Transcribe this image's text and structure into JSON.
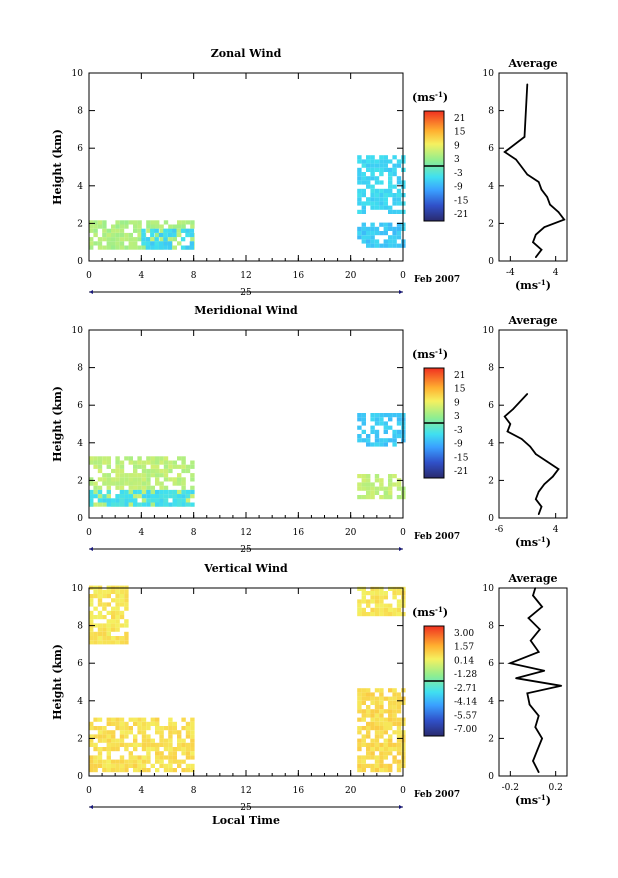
{
  "date_label": "Feb 2007",
  "day_label": "25",
  "x_axis_label": "Local Time",
  "y_axis_label": "Height (km)",
  "unit_label": "(ms",
  "unit_exp": "-1",
  "average_title": "Average",
  "chart_data": [
    {
      "type": "heatmap",
      "title": "Zonal Wind",
      "xlabel": "",
      "ylabel": "Height (km)",
      "xlim": [
        0,
        24
      ],
      "ylim": [
        0,
        10
      ],
      "x_ticks": [
        "0",
        "4",
        "8",
        "12",
        "16",
        "20",
        "0"
      ],
      "y_ticks": [
        "0",
        "2",
        "4",
        "6",
        "8",
        "10"
      ],
      "colorbar": {
        "unit": "ms-1",
        "ticks": [
          "21",
          "15",
          "9",
          "3",
          "-3",
          "-9",
          "-15",
          "-21"
        ]
      },
      "regions": [
        {
          "x": [
            0,
            8
          ],
          "y": [
            0.6,
            2.0
          ],
          "value": 4
        },
        {
          "x": [
            4,
            8
          ],
          "y": [
            0.6,
            1.5
          ],
          "value": -5
        },
        {
          "x": [
            20.5,
            24
          ],
          "y": [
            0.7,
            2.0
          ],
          "value": -6
        },
        {
          "x": [
            20.5,
            24
          ],
          "y": [
            2.5,
            5.5
          ],
          "value": -5
        }
      ],
      "average": {
        "xlim": [
          -6,
          6
        ],
        "x_ticks": [
          "-4",
          "4"
        ],
        "height": [
          0.2,
          0.6,
          1.0,
          1.4,
          1.8,
          2.2,
          2.6,
          3.0,
          3.4,
          3.8,
          4.2,
          4.6,
          5.0,
          5.4,
          5.8,
          6.6,
          9.4
        ],
        "value": [
          0.5,
          1.5,
          0.0,
          0.5,
          2.0,
          5.5,
          4.5,
          3.0,
          2.5,
          1.5,
          1.0,
          -1.0,
          -2.0,
          -3.0,
          -5.0,
          -1.5,
          -1.0
        ]
      }
    },
    {
      "type": "heatmap",
      "title": "Meridional Wind",
      "xlabel": "",
      "ylabel": "Height (km)",
      "xlim": [
        0,
        24
      ],
      "ylim": [
        0,
        10
      ],
      "x_ticks": [
        "0",
        "4",
        "8",
        "12",
        "16",
        "20",
        "0"
      ],
      "y_ticks": [
        "0",
        "2",
        "4",
        "6",
        "8",
        "10"
      ],
      "colorbar": {
        "unit": "ms-1",
        "ticks": [
          "21",
          "15",
          "9",
          "3",
          "-3",
          "-9",
          "-15",
          "-21"
        ]
      },
      "regions": [
        {
          "x": [
            0,
            8
          ],
          "y": [
            0.6,
            3.2
          ],
          "value": 5
        },
        {
          "x": [
            0,
            8
          ],
          "y": [
            0.6,
            1.4
          ],
          "value": -4
        },
        {
          "x": [
            20.5,
            24
          ],
          "y": [
            1.0,
            2.2
          ],
          "value": 5
        },
        {
          "x": [
            20.5,
            24
          ],
          "y": [
            3.8,
            5.5
          ],
          "value": -6
        }
      ],
      "average": {
        "xlim": [
          -6,
          6
        ],
        "x_ticks": [
          "-6",
          "4"
        ],
        "height": [
          0.2,
          0.6,
          1.0,
          1.4,
          1.8,
          2.2,
          2.6,
          3.0,
          3.4,
          3.8,
          4.2,
          4.6,
          5.0,
          5.4,
          5.8,
          6.6
        ],
        "value": [
          1.0,
          1.5,
          0.5,
          1.0,
          2.0,
          3.5,
          4.5,
          2.5,
          0.5,
          -0.5,
          -2.0,
          -4.5,
          -4.0,
          -5.0,
          -3.5,
          -1.0
        ]
      }
    },
    {
      "type": "heatmap",
      "title": "Vertical Wind",
      "xlabel": "Local Time",
      "ylabel": "Height (km)",
      "xlim": [
        0,
        24
      ],
      "ylim": [
        0,
        10
      ],
      "x_ticks": [
        "0",
        "4",
        "8",
        "12",
        "16",
        "20",
        "0"
      ],
      "y_ticks": [
        "0",
        "2",
        "4",
        "6",
        "8",
        "10"
      ],
      "colorbar": {
        "unit": "ms-1",
        "ticks": [
          "3.00",
          "1.57",
          "0.14",
          "-1.28",
          "-2.71",
          "-4.14",
          "-5.57",
          "-7.00"
        ]
      },
      "regions": [
        {
          "x": [
            0,
            8
          ],
          "y": [
            0.2,
            3.0
          ],
          "value": 0.3
        },
        {
          "x": [
            0,
            3
          ],
          "y": [
            7.0,
            10.0
          ],
          "value": 0.2
        },
        {
          "x": [
            20.5,
            24
          ],
          "y": [
            0.2,
            4.5
          ],
          "value": 0.4
        },
        {
          "x": [
            20.5,
            24
          ],
          "y": [
            8.5,
            10.0
          ],
          "value": 0.2
        }
      ],
      "average": {
        "xlim": [
          -0.3,
          0.3
        ],
        "x_ticks": [
          "-0.2",
          "0.2"
        ],
        "height": [
          0.2,
          0.8,
          1.4,
          2.0,
          2.6,
          3.2,
          3.8,
          4.4,
          4.8,
          5.2,
          5.6,
          6.0,
          6.6,
          7.2,
          7.8,
          8.4,
          9.0,
          9.6,
          10.0
        ],
        "value": [
          0.05,
          0.0,
          0.04,
          0.08,
          0.02,
          0.05,
          -0.03,
          -0.05,
          0.25,
          -0.15,
          0.1,
          -0.2,
          0.05,
          -0.02,
          0.06,
          -0.04,
          0.08,
          0.0,
          0.02
        ]
      }
    }
  ]
}
